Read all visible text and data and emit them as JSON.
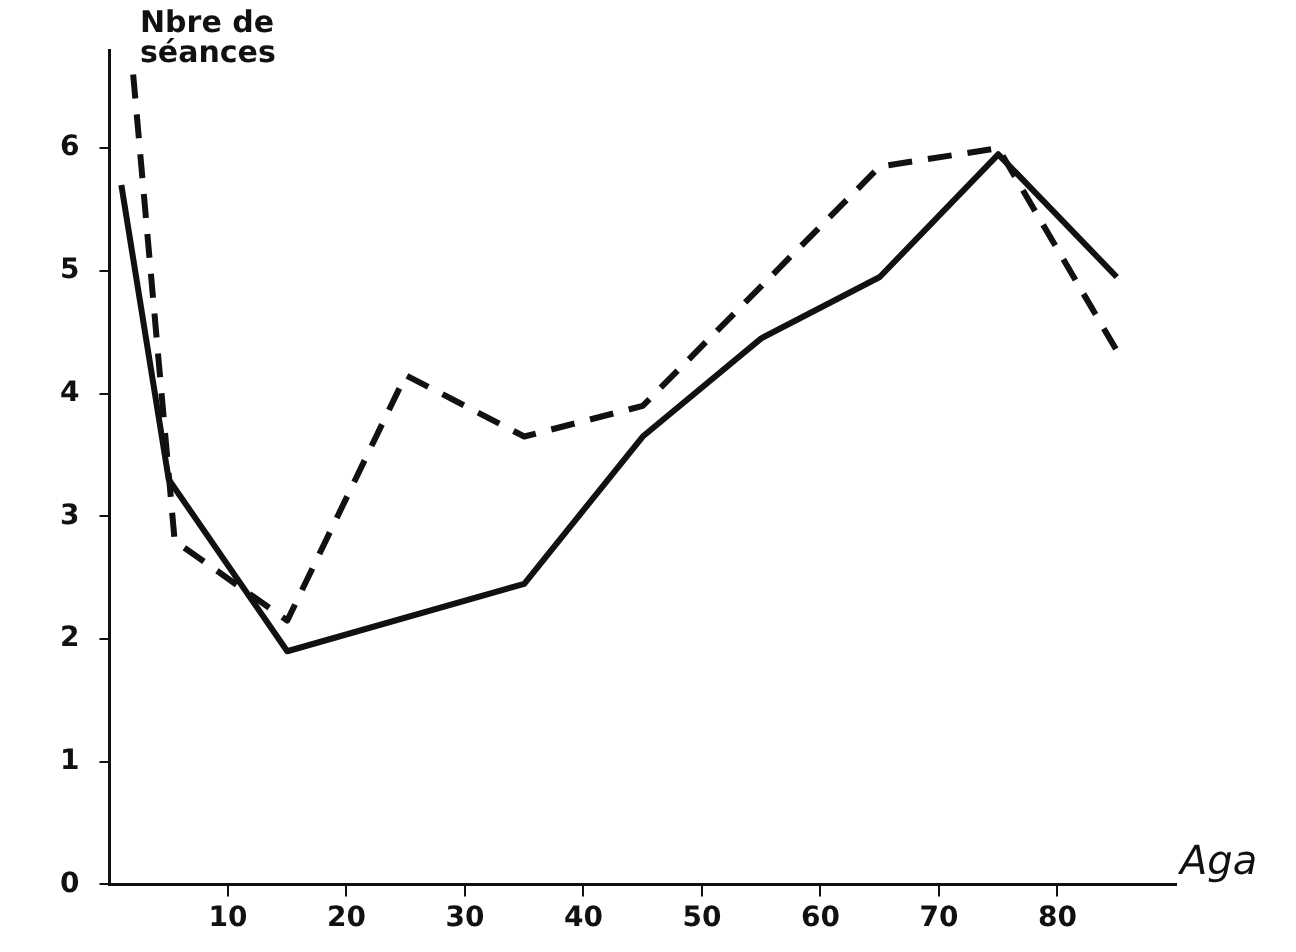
{
  "chart_data": {
    "type": "line",
    "xlabel": "Aga",
    "ylabel": "Nbre de séances",
    "x": [
      1,
      5,
      15,
      35,
      45,
      55,
      65,
      75,
      85
    ],
    "series": [
      {
        "color": "#111111",
        "line_style": "solid",
        "values": [
          5.7,
          3.3,
          1.9,
          2.45,
          3.65,
          4.45,
          4.95,
          5.95,
          4.95
        ]
      },
      {
        "color": "#111111",
        "line_style": "dashed",
        "x": [
          2,
          5.5,
          15,
          25,
          35,
          45,
          65,
          75,
          85
        ],
        "values": [
          6.6,
          2.8,
          2.15,
          4.15,
          3.65,
          3.9,
          5.85,
          6.0,
          4.35
        ]
      }
    ],
    "xlim": [
      0,
      90
    ],
    "xticks": [
      10,
      20,
      30,
      40,
      50,
      60,
      70,
      80
    ],
    "ylim": [
      0,
      6.8
    ],
    "yticks": [
      0,
      1,
      2,
      3,
      4,
      5,
      6
    ],
    "grid": false,
    "legend": false,
    "marker": "none"
  }
}
